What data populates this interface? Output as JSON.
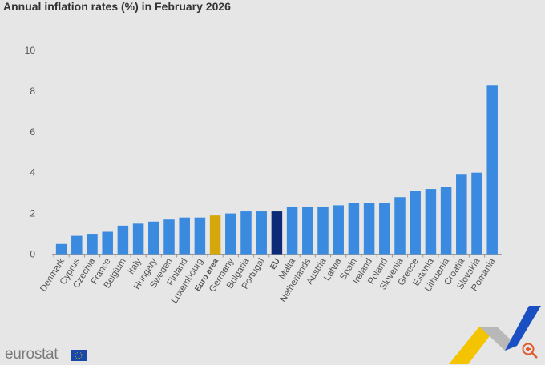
{
  "chart_data": {
    "type": "bar",
    "title": "Annual inflation rates (%) in February 2026",
    "xlabel": "",
    "ylabel": "",
    "ylim": [
      0,
      10
    ],
    "yticks": [
      0,
      2,
      4,
      6,
      8,
      10
    ],
    "grid": false,
    "categories": [
      "Denmark",
      "Cyprus",
      "Czechia",
      "France",
      "Belgium",
      "Italy",
      "Hungary",
      "Sweden",
      "Finland",
      "Luxembourg",
      "Euro area",
      "Germany",
      "Bulgaria",
      "Portugal",
      "EU",
      "Malta",
      "Netherlands",
      "Austria",
      "Latvia",
      "Spain",
      "Ireland",
      "Poland",
      "Slovenia",
      "Greece",
      "Estonia",
      "Lithuania",
      "Croatia",
      "Slovakia",
      "Romania"
    ],
    "values": [
      0.5,
      0.9,
      1.0,
      1.1,
      1.4,
      1.5,
      1.6,
      1.7,
      1.8,
      1.8,
      1.9,
      2.0,
      2.1,
      2.1,
      2.1,
      2.3,
      2.3,
      2.3,
      2.4,
      2.5,
      2.5,
      2.5,
      2.8,
      3.1,
      3.2,
      3.3,
      3.9,
      4.0,
      8.3
    ],
    "colors": {
      "default": "#3a8ae0",
      "Euro area": "#d4a80c",
      "EU": "#0d2a78"
    },
    "bold_categories": [
      "Euro area",
      "EU"
    ]
  },
  "branding": {
    "logo_text": "eurostat",
    "zoom_icon": "zoom-in-icon"
  }
}
